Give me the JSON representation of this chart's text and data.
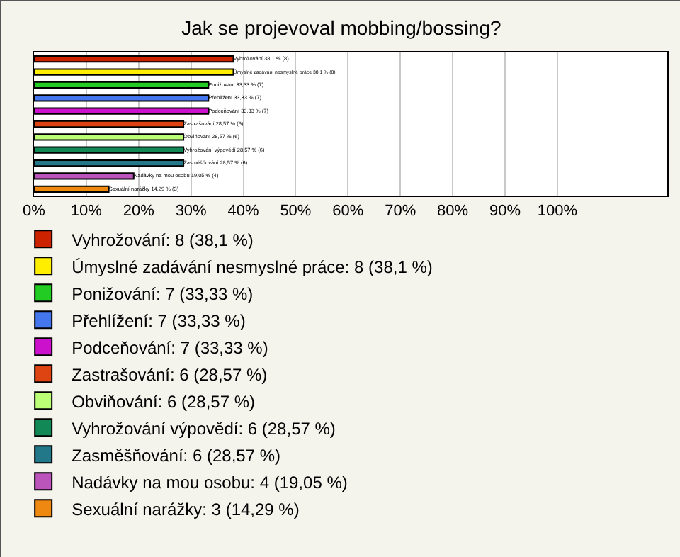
{
  "chart_data": {
    "type": "bar",
    "orientation": "horizontal",
    "title": "Jak se projevoval mobbing/bossing?",
    "categories": [
      null,
      null,
      null,
      null,
      null,
      null,
      null,
      null,
      null,
      null,
      null
    ],
    "series": [
      {
        "name": "Vyhrožování: 8 (38,1 %)",
        "color": "#cc2200",
        "values": [
          38.1,
          null,
          null,
          null,
          null,
          null,
          null,
          null,
          null,
          null,
          null
        ],
        "value_labels": [
          "Vyhrožování 38,1 % (8)",
          null,
          null,
          null,
          null,
          null,
          null,
          null,
          null,
          null,
          null
        ]
      },
      {
        "name": "Úmyslné zadávání nesmyslné práce: 8 (38,1 %)",
        "color": "#ffee00",
        "values": [
          null,
          38.1,
          null,
          null,
          null,
          null,
          null,
          null,
          null,
          null,
          null
        ],
        "value_labels": [
          null,
          "Úmyslné zadávání nesmyslné práce 38,1 % (8)",
          null,
          null,
          null,
          null,
          null,
          null,
          null,
          null,
          null
        ]
      },
      {
        "name": "Ponižování: 7 (33,33 %)",
        "color": "#22cc22",
        "values": [
          null,
          null,
          33.33,
          null,
          null,
          null,
          null,
          null,
          null,
          null,
          null
        ],
        "value_labels": [
          null,
          null,
          "Ponižování 33,33 % (7)",
          null,
          null,
          null,
          null,
          null,
          null,
          null,
          null
        ]
      },
      {
        "name": "Přehlížení: 7 (33,33 %)",
        "color": "#4477ee",
        "values": [
          null,
          null,
          null,
          33.33,
          null,
          null,
          null,
          null,
          null,
          null,
          null
        ],
        "value_labels": [
          null,
          null,
          null,
          "Přehlížení 33,33 % (7)",
          null,
          null,
          null,
          null,
          null,
          null,
          null
        ]
      },
      {
        "name": "Podceňování: 7 (33,33 %)",
        "color": "#cc11cc",
        "values": [
          null,
          null,
          null,
          null,
          33.33,
          null,
          null,
          null,
          null,
          null,
          null
        ],
        "value_labels": [
          null,
          null,
          null,
          null,
          "Podceňování 33,33 % (7)",
          null,
          null,
          null,
          null,
          null,
          null
        ]
      },
      {
        "name": "Zastrašování: 6 (28,57 %)",
        "color": "#dd4411",
        "values": [
          null,
          null,
          null,
          null,
          null,
          28.57,
          null,
          null,
          null,
          null,
          null
        ],
        "value_labels": [
          null,
          null,
          null,
          null,
          null,
          "Zastrašování 28,57 % (6)",
          null,
          null,
          null,
          null,
          null
        ]
      },
      {
        "name": "Obviňování: 6 (28,57 %)",
        "color": "#bbff77",
        "values": [
          null,
          null,
          null,
          null,
          null,
          null,
          28.57,
          null,
          null,
          null,
          null
        ],
        "value_labels": [
          null,
          null,
          null,
          null,
          null,
          null,
          "Obviňování 28,57 % (6)",
          null,
          null,
          null,
          null
        ]
      },
      {
        "name": "Vyhrožování výpovědí: 6 (28,57 %)",
        "color": "#118855",
        "values": [
          null,
          null,
          null,
          null,
          null,
          null,
          null,
          28.57,
          null,
          null,
          null
        ],
        "value_labels": [
          null,
          null,
          null,
          null,
          null,
          null,
          null,
          "Vyhrožování výpovědí 28,57 % (6)",
          null,
          null,
          null
        ]
      },
      {
        "name": "Zasměšňování: 6 (28,57 %)",
        "color": "#227788",
        "values": [
          null,
          null,
          null,
          null,
          null,
          null,
          null,
          null,
          28.57,
          null,
          null
        ],
        "value_labels": [
          null,
          null,
          null,
          null,
          null,
          null,
          null,
          null,
          "Zasměšňování 28,57 % (6)",
          null,
          null
        ]
      },
      {
        "name": "Nadávky na mou osobu: 4 (19,05 %)",
        "color": "#bb55bb",
        "values": [
          null,
          null,
          null,
          null,
          null,
          null,
          null,
          null,
          null,
          19.05,
          null
        ],
        "value_labels": [
          null,
          null,
          null,
          null,
          null,
          null,
          null,
          null,
          null,
          "Nadávky na mou osobu 19,05 % (4)",
          null
        ]
      },
      {
        "name": "Sexuální narážky: 3 (14,29 %)",
        "color": "#ee8811",
        "values": [
          null,
          null,
          null,
          null,
          null,
          null,
          null,
          null,
          null,
          null,
          14.29
        ],
        "value_labels": [
          null,
          null,
          null,
          null,
          null,
          null,
          null,
          null,
          null,
          null,
          "Sexuální narážky 14,29 % (3)"
        ]
      }
    ],
    "xlim": [
      0,
      121
    ],
    "xticks": [
      {
        "value": 0,
        "label": "0%"
      },
      {
        "value": 10,
        "label": "10%"
      },
      {
        "value": 20,
        "label": "20%"
      },
      {
        "value": 30,
        "label": "30%"
      },
      {
        "value": 40,
        "label": "40%"
      },
      {
        "value": 50,
        "label": "50%"
      },
      {
        "value": 60,
        "label": "60%"
      },
      {
        "value": 70,
        "label": "70%"
      },
      {
        "value": 80,
        "label": "80%"
      },
      {
        "value": 90,
        "label": "90%"
      },
      {
        "value": 100,
        "label": "100%"
      }
    ],
    "grid": "x",
    "legend": "bottom",
    "tick_labels": "x"
  }
}
